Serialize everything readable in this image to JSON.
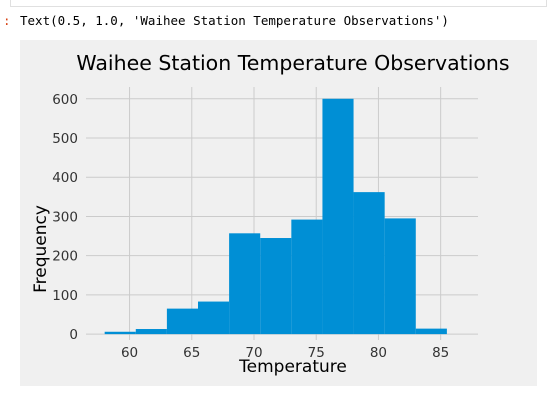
{
  "cell": {
    "out_prompt": ":",
    "out_text": "Text(0.5, 1.0, 'Waihee Station Temperature Observations')"
  },
  "chart_data": {
    "type": "histogram",
    "title": "Waihee Station Temperature Observations",
    "xlabel": "Temperature",
    "ylabel": "Frequency",
    "bin_edges": [
      58.0,
      60.5,
      63.0,
      65.5,
      68.0,
      70.5,
      73.0,
      75.5,
      78.0,
      80.5,
      83.0,
      85.5
    ],
    "values": [
      6,
      13,
      65,
      83,
      257,
      245,
      292,
      600,
      362,
      295,
      14
    ],
    "xlim": [
      56.5,
      88
    ],
    "ylim": [
      -15,
      630
    ],
    "xticks": [
      60,
      65,
      70,
      75,
      80,
      85
    ],
    "yticks": [
      0,
      100,
      200,
      300,
      400,
      500,
      600
    ],
    "grid": true,
    "colors": {
      "bar": "#008fd5",
      "background": "#f0f0f0",
      "grid": "#cbcbcb",
      "text": "#000000"
    }
  }
}
